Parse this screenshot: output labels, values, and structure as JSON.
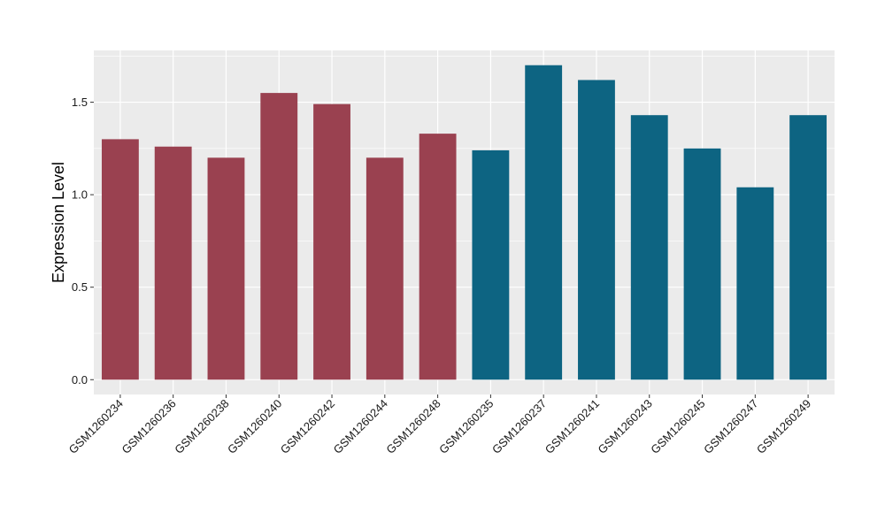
{
  "chart_data": {
    "type": "bar",
    "title": "",
    "xlabel": "",
    "ylabel": "Expression Level",
    "ylim": [
      -0.08,
      1.78
    ],
    "yticks": [
      0.0,
      0.5,
      1.0,
      1.5
    ],
    "ytick_labels": [
      "0.0",
      "0.5",
      "1.0",
      "1.5"
    ],
    "grid": true,
    "legend": "none",
    "categories": [
      "GSM1260234",
      "GSM1260236",
      "GSM1260238",
      "GSM1260240",
      "GSM1260242",
      "GSM1260244",
      "GSM1260248",
      "GSM1260235",
      "GSM1260237",
      "GSM1260241",
      "GSM1260243",
      "GSM1260245",
      "GSM1260247",
      "GSM1260249"
    ],
    "values": [
      1.3,
      1.26,
      1.2,
      1.55,
      1.49,
      1.2,
      1.33,
      1.24,
      1.7,
      1.62,
      1.43,
      1.25,
      1.04,
      1.43
    ],
    "groups": [
      0,
      0,
      0,
      0,
      0,
      0,
      0,
      1,
      1,
      1,
      1,
      1,
      1,
      1
    ],
    "group_colors": [
      "#9A4150",
      "#0D6482"
    ],
    "panel_background": "#EBEBEB",
    "grid_color": "#FFFFFF"
  }
}
